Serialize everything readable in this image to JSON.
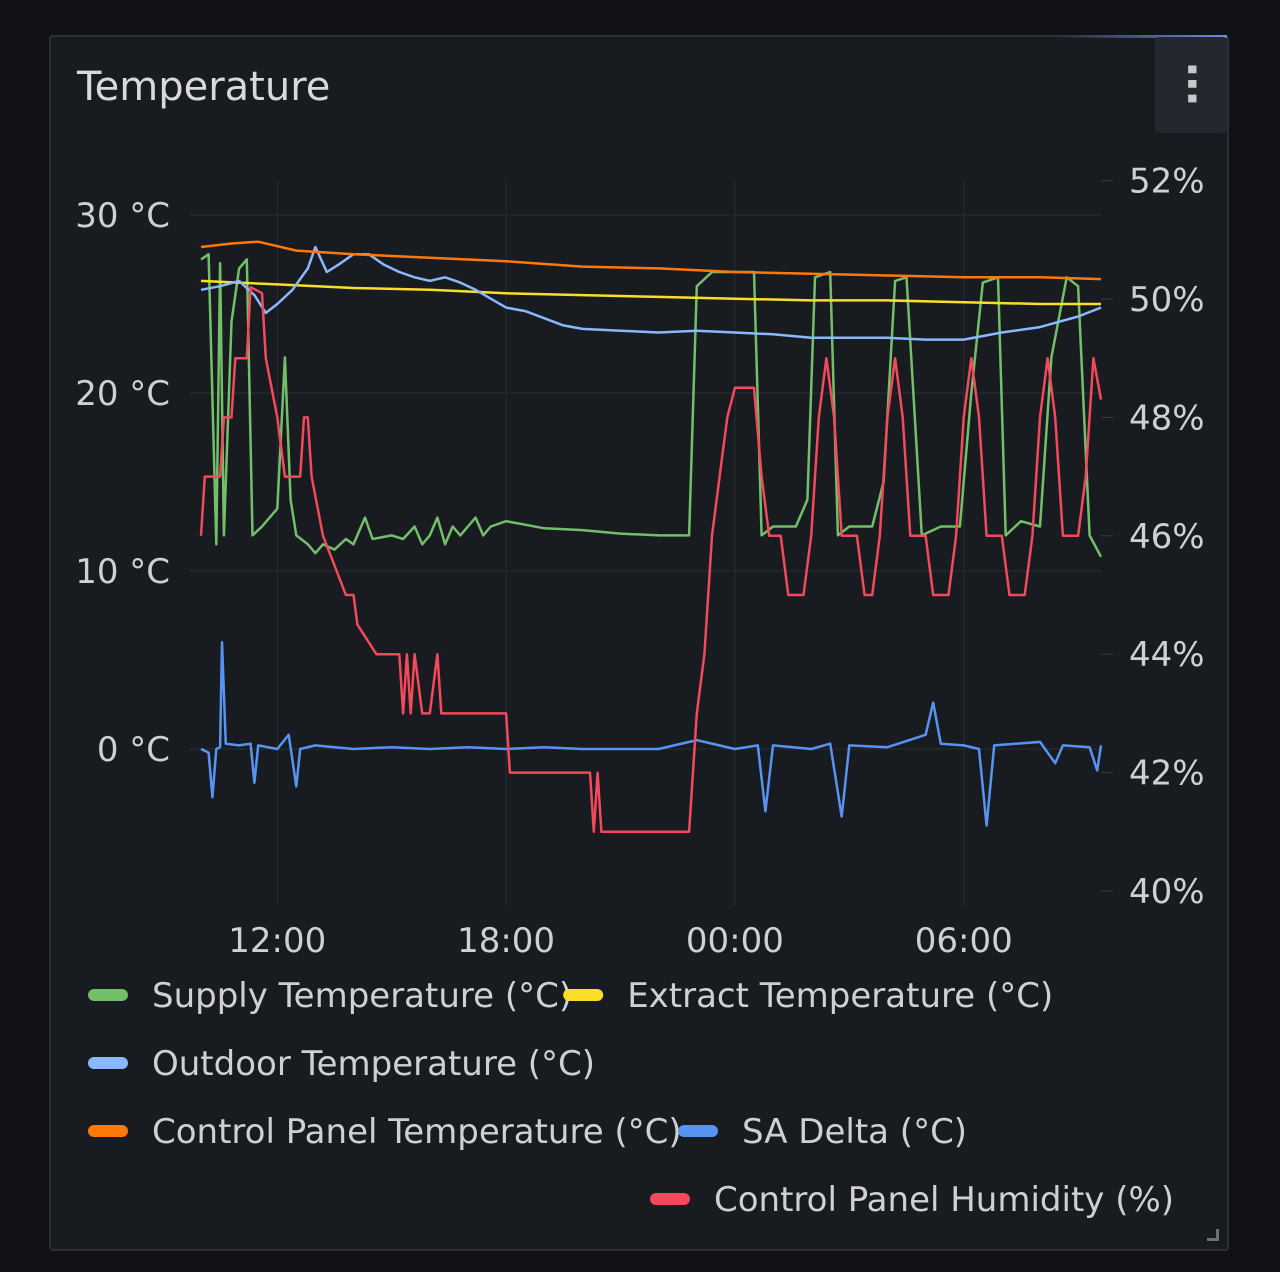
{
  "panel": {
    "title": "Temperature",
    "menu_icon": "vertical-ellipsis-icon",
    "menu_glyph": "⋯"
  },
  "chart_data": {
    "type": "line",
    "x_start": "10:00",
    "x_end": "10:00",
    "x_ticks": [
      "12:00",
      "18:00",
      "00:00",
      "06:00"
    ],
    "y_left": {
      "ticks": [
        "0 °C",
        "10 °C",
        "20 °C",
        "30 °C"
      ],
      "values": [
        0,
        10,
        20,
        30
      ],
      "unit": "°C"
    },
    "y_right": {
      "ticks": [
        "40%",
        "42%",
        "44%",
        "46%",
        "48%",
        "50%",
        "52%"
      ],
      "values": [
        40,
        42,
        44,
        46,
        48,
        50,
        52
      ],
      "unit": "%"
    },
    "grid": true,
    "legend_position": "bottom",
    "series": [
      {
        "name": "Supply Temperature (°C)",
        "color": "#73bf69",
        "axis": "left",
        "points": [
          [
            0,
            27.5
          ],
          [
            0.2,
            27.8
          ],
          [
            0.4,
            11.5
          ],
          [
            0.5,
            27.3
          ],
          [
            0.6,
            12
          ],
          [
            0.8,
            24
          ],
          [
            1.0,
            27
          ],
          [
            1.2,
            27.5
          ],
          [
            1.35,
            12
          ],
          [
            1.6,
            12.5
          ],
          [
            1.8,
            13
          ],
          [
            2.0,
            13.5
          ],
          [
            2.2,
            22
          ],
          [
            2.35,
            14
          ],
          [
            2.5,
            12
          ],
          [
            2.8,
            11.5
          ],
          [
            3.0,
            11
          ],
          [
            3.2,
            11.5
          ],
          [
            3.5,
            11.2
          ],
          [
            3.8,
            11.8
          ],
          [
            4.0,
            11.5
          ],
          [
            4.3,
            13
          ],
          [
            4.5,
            11.8
          ],
          [
            5.0,
            12
          ],
          [
            5.3,
            11.8
          ],
          [
            5.6,
            12.5
          ],
          [
            5.8,
            11.5
          ],
          [
            6.0,
            12
          ],
          [
            6.2,
            13
          ],
          [
            6.4,
            11.5
          ],
          [
            6.6,
            12.5
          ],
          [
            6.8,
            12
          ],
          [
            7.0,
            12.5
          ],
          [
            7.2,
            13
          ],
          [
            7.4,
            12
          ],
          [
            7.6,
            12.5
          ],
          [
            8.0,
            12.8
          ],
          [
            8.5,
            12.6
          ],
          [
            9.0,
            12.4
          ],
          [
            10,
            12.3
          ],
          [
            11,
            12.1
          ],
          [
            12,
            12.0
          ],
          [
            12.8,
            12.0
          ],
          [
            13.0,
            26
          ],
          [
            13.4,
            26.8
          ],
          [
            14,
            26.8
          ],
          [
            14.5,
            26.8
          ],
          [
            14.7,
            12
          ],
          [
            15.0,
            12.5
          ],
          [
            15.6,
            12.5
          ],
          [
            15.9,
            14
          ],
          [
            16.1,
            26.5
          ],
          [
            16.5,
            26.8
          ],
          [
            16.7,
            12
          ],
          [
            17.0,
            12.5
          ],
          [
            17.6,
            12.5
          ],
          [
            17.9,
            15
          ],
          [
            18.2,
            26.3
          ],
          [
            18.5,
            26.5
          ],
          [
            18.9,
            12
          ],
          [
            19.4,
            12.5
          ],
          [
            19.9,
            12.5
          ],
          [
            20.2,
            20
          ],
          [
            20.5,
            26.2
          ],
          [
            20.9,
            26.5
          ],
          [
            21.1,
            12
          ],
          [
            21.5,
            12.8
          ],
          [
            22.0,
            12.5
          ],
          [
            22.3,
            22
          ],
          [
            22.7,
            26.5
          ],
          [
            23.0,
            26
          ],
          [
            23.3,
            12
          ],
          [
            23.6,
            10.8
          ]
        ]
      },
      {
        "name": "Extract Temperature (°C)",
        "color": "#fade2a",
        "axis": "left",
        "points": [
          [
            0,
            26.3
          ],
          [
            2,
            26.1
          ],
          [
            4,
            25.9
          ],
          [
            6,
            25.8
          ],
          [
            8,
            25.6
          ],
          [
            10,
            25.5
          ],
          [
            12,
            25.4
          ],
          [
            14,
            25.3
          ],
          [
            16,
            25.2
          ],
          [
            18,
            25.2
          ],
          [
            20,
            25.1
          ],
          [
            22,
            25.0
          ],
          [
            23.6,
            25.0
          ]
        ]
      },
      {
        "name": "Outdoor Temperature (°C)",
        "color": "#8ab8ff",
        "axis": "left",
        "points": [
          [
            0,
            25.8
          ],
          [
            0.5,
            26.0
          ],
          [
            1.0,
            26.3
          ],
          [
            1.4,
            25.5
          ],
          [
            1.7,
            24.5
          ],
          [
            2.0,
            25.0
          ],
          [
            2.4,
            25.8
          ],
          [
            2.8,
            27.0
          ],
          [
            3.0,
            28.2
          ],
          [
            3.3,
            26.8
          ],
          [
            3.6,
            27.2
          ],
          [
            4.0,
            27.8
          ],
          [
            4.4,
            27.8
          ],
          [
            4.8,
            27.2
          ],
          [
            5.2,
            26.8
          ],
          [
            5.6,
            26.5
          ],
          [
            6.0,
            26.3
          ],
          [
            6.4,
            26.5
          ],
          [
            6.8,
            26.2
          ],
          [
            7.2,
            25.8
          ],
          [
            7.6,
            25.3
          ],
          [
            8.0,
            24.8
          ],
          [
            8.5,
            24.6
          ],
          [
            9.0,
            24.2
          ],
          [
            9.5,
            23.8
          ],
          [
            10.0,
            23.6
          ],
          [
            11,
            23.5
          ],
          [
            12,
            23.4
          ],
          [
            13,
            23.5
          ],
          [
            14,
            23.4
          ],
          [
            15,
            23.3
          ],
          [
            16,
            23.1
          ],
          [
            17,
            23.1
          ],
          [
            18,
            23.1
          ],
          [
            19,
            23.0
          ],
          [
            20,
            23.0
          ],
          [
            21,
            23.4
          ],
          [
            22,
            23.7
          ],
          [
            23,
            24.3
          ],
          [
            23.6,
            24.8
          ]
        ]
      },
      {
        "name": "Control Panel Temperature (°C)",
        "color": "#ff780a",
        "axis": "left",
        "points": [
          [
            0,
            28.2
          ],
          [
            0.8,
            28.4
          ],
          [
            1.5,
            28.5
          ],
          [
            2.5,
            28.0
          ],
          [
            4,
            27.8
          ],
          [
            6,
            27.6
          ],
          [
            8,
            27.4
          ],
          [
            10,
            27.1
          ],
          [
            12,
            27.0
          ],
          [
            14,
            26.8
          ],
          [
            16,
            26.7
          ],
          [
            18,
            26.6
          ],
          [
            20,
            26.5
          ],
          [
            22,
            26.5
          ],
          [
            23.6,
            26.4
          ]
        ]
      },
      {
        "name": "SA Delta (°C)",
        "color": "#5794f2",
        "axis": "left",
        "points": [
          [
            0,
            0
          ],
          [
            0.2,
            -0.2
          ],
          [
            0.3,
            -2.7
          ],
          [
            0.4,
            0
          ],
          [
            0.5,
            0.1
          ],
          [
            0.55,
            6.0
          ],
          [
            0.65,
            0.3
          ],
          [
            1.0,
            0.2
          ],
          [
            1.3,
            0.3
          ],
          [
            1.4,
            -1.9
          ],
          [
            1.5,
            0.2
          ],
          [
            2.0,
            0
          ],
          [
            2.3,
            0.8
          ],
          [
            2.5,
            -2.1
          ],
          [
            2.6,
            0
          ],
          [
            3.0,
            0.2
          ],
          [
            4.0,
            0
          ],
          [
            5.0,
            0.1
          ],
          [
            6.0,
            0
          ],
          [
            7.0,
            0.1
          ],
          [
            8.0,
            0
          ],
          [
            9.0,
            0.1
          ],
          [
            10,
            0
          ],
          [
            11,
            0
          ],
          [
            12,
            0
          ],
          [
            13,
            0.5
          ],
          [
            14,
            0
          ],
          [
            14.6,
            0.2
          ],
          [
            14.8,
            -3.5
          ],
          [
            15.0,
            0.2
          ],
          [
            16,
            0
          ],
          [
            16.5,
            0.3
          ],
          [
            16.8,
            -3.8
          ],
          [
            17.0,
            0.2
          ],
          [
            18,
            0.1
          ],
          [
            19,
            0.8
          ],
          [
            19.2,
            2.6
          ],
          [
            19.4,
            0.3
          ],
          [
            20,
            0.2
          ],
          [
            20.4,
            0
          ],
          [
            20.6,
            -4.3
          ],
          [
            20.8,
            0.2
          ],
          [
            22,
            0.4
          ],
          [
            22.4,
            -0.8
          ],
          [
            22.6,
            0.2
          ],
          [
            23.3,
            0.1
          ],
          [
            23.5,
            -1.2
          ],
          [
            23.6,
            0.2
          ]
        ]
      },
      {
        "name": "Control Panel Humidity (%)",
        "color": "#f2495c",
        "axis": "right",
        "points": [
          [
            0,
            46
          ],
          [
            0.1,
            47
          ],
          [
            0.5,
            47
          ],
          [
            0.6,
            48
          ],
          [
            0.8,
            48
          ],
          [
            0.9,
            49
          ],
          [
            1.2,
            49
          ],
          [
            1.3,
            50.2
          ],
          [
            1.6,
            50.1
          ],
          [
            1.7,
            49
          ],
          [
            2.0,
            48
          ],
          [
            2.2,
            47
          ],
          [
            2.6,
            47
          ],
          [
            2.7,
            48
          ],
          [
            2.8,
            48
          ],
          [
            2.9,
            47
          ],
          [
            3.2,
            46
          ],
          [
            3.5,
            45.5
          ],
          [
            3.8,
            45
          ],
          [
            4.0,
            45
          ],
          [
            4.1,
            44.5
          ],
          [
            4.6,
            44
          ],
          [
            5.2,
            44
          ],
          [
            5.3,
            43
          ],
          [
            5.4,
            44
          ],
          [
            5.5,
            43
          ],
          [
            5.6,
            44
          ],
          [
            5.8,
            43
          ],
          [
            6.0,
            43
          ],
          [
            6.2,
            44
          ],
          [
            6.3,
            43
          ],
          [
            7.0,
            43
          ],
          [
            8.0,
            43
          ],
          [
            8.1,
            42
          ],
          [
            8.5,
            42
          ],
          [
            9.0,
            42
          ],
          [
            10.2,
            42
          ],
          [
            10.3,
            41
          ],
          [
            10.4,
            42
          ],
          [
            10.5,
            41
          ],
          [
            11,
            41
          ],
          [
            12,
            41
          ],
          [
            12.8,
            41
          ],
          [
            13.0,
            43
          ],
          [
            13.2,
            44
          ],
          [
            13.4,
            46
          ],
          [
            13.6,
            47
          ],
          [
            13.8,
            48
          ],
          [
            14.0,
            48.5
          ],
          [
            14.5,
            48.5
          ],
          [
            14.7,
            47
          ],
          [
            14.9,
            46
          ],
          [
            15.2,
            46
          ],
          [
            15.4,
            45
          ],
          [
            15.8,
            45
          ],
          [
            16.0,
            46
          ],
          [
            16.2,
            48
          ],
          [
            16.4,
            49
          ],
          [
            16.6,
            48
          ],
          [
            16.8,
            46
          ],
          [
            17.2,
            46
          ],
          [
            17.4,
            45
          ],
          [
            17.6,
            45
          ],
          [
            17.8,
            46
          ],
          [
            18.0,
            48
          ],
          [
            18.2,
            49
          ],
          [
            18.4,
            48
          ],
          [
            18.6,
            46
          ],
          [
            19.0,
            46
          ],
          [
            19.2,
            45
          ],
          [
            19.6,
            45
          ],
          [
            19.8,
            46
          ],
          [
            20.0,
            48
          ],
          [
            20.2,
            49
          ],
          [
            20.4,
            48
          ],
          [
            20.6,
            46
          ],
          [
            21.0,
            46
          ],
          [
            21.2,
            45
          ],
          [
            21.6,
            45
          ],
          [
            21.8,
            46
          ],
          [
            22.0,
            48
          ],
          [
            22.2,
            49
          ],
          [
            22.4,
            48
          ],
          [
            22.6,
            46
          ],
          [
            23.0,
            46
          ],
          [
            23.2,
            47
          ],
          [
            23.4,
            49
          ],
          [
            23.6,
            48.3
          ]
        ]
      }
    ]
  }
}
